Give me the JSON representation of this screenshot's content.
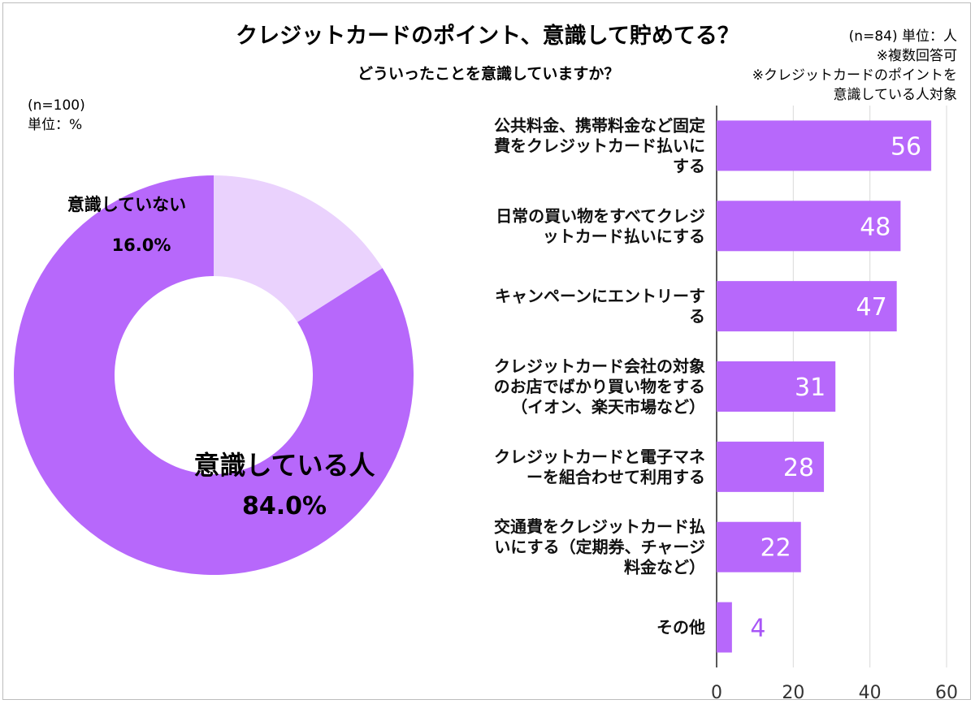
{
  "title": "クレジットカードのポイント、意識して貯めてる？",
  "right_title": "どういったことを意識していますか？",
  "right_notes": [
    "(n=84) 単位：人",
    "※複数回答可",
    "※クレジットカードのポイントを",
    "意識している人対象"
  ],
  "pie_notes": [
    "(n=100)",
    "単位：%"
  ],
  "colors": {
    "primary": "#b768fb",
    "light": "#ead2fd",
    "grid": "#d9d9d9",
    "small_label": "#a855f7"
  },
  "chart_data": [
    {
      "type": "pie",
      "style": "donut",
      "slices": [
        {
          "label": "意識している人",
          "value": 84.0,
          "value_label": "84.0%",
          "color": "#b768fb"
        },
        {
          "label": "意識していない",
          "value": 16.0,
          "value_label": "16.0%",
          "color": "#ead2fd"
        }
      ]
    },
    {
      "type": "bar",
      "orientation": "horizontal",
      "categories": [
        [
          "公共料金、携帯料金など固定",
          "費をクレジットカード払いに",
          "する"
        ],
        [
          "日常の買い物をすべてクレジ",
          "ットカード払いにする"
        ],
        [
          "キャンペーンにエントリーす",
          "る"
        ],
        [
          "クレジットカード会社の対象",
          "のお店でばかり買い物をする",
          "（イオン、楽天市場など）"
        ],
        [
          "クレジットカードと電子マネ",
          "ーを組合わせて利用する"
        ],
        [
          "交通費をクレジットカード払",
          "いにする（定期券、チャージ",
          "料金など）"
        ],
        [
          "その他"
        ]
      ],
      "values": [
        56,
        48,
        47,
        31,
        28,
        22,
        4
      ],
      "xlim": [
        0,
        60
      ],
      "xticks": [
        0,
        20,
        40,
        60
      ],
      "grid": true
    }
  ]
}
